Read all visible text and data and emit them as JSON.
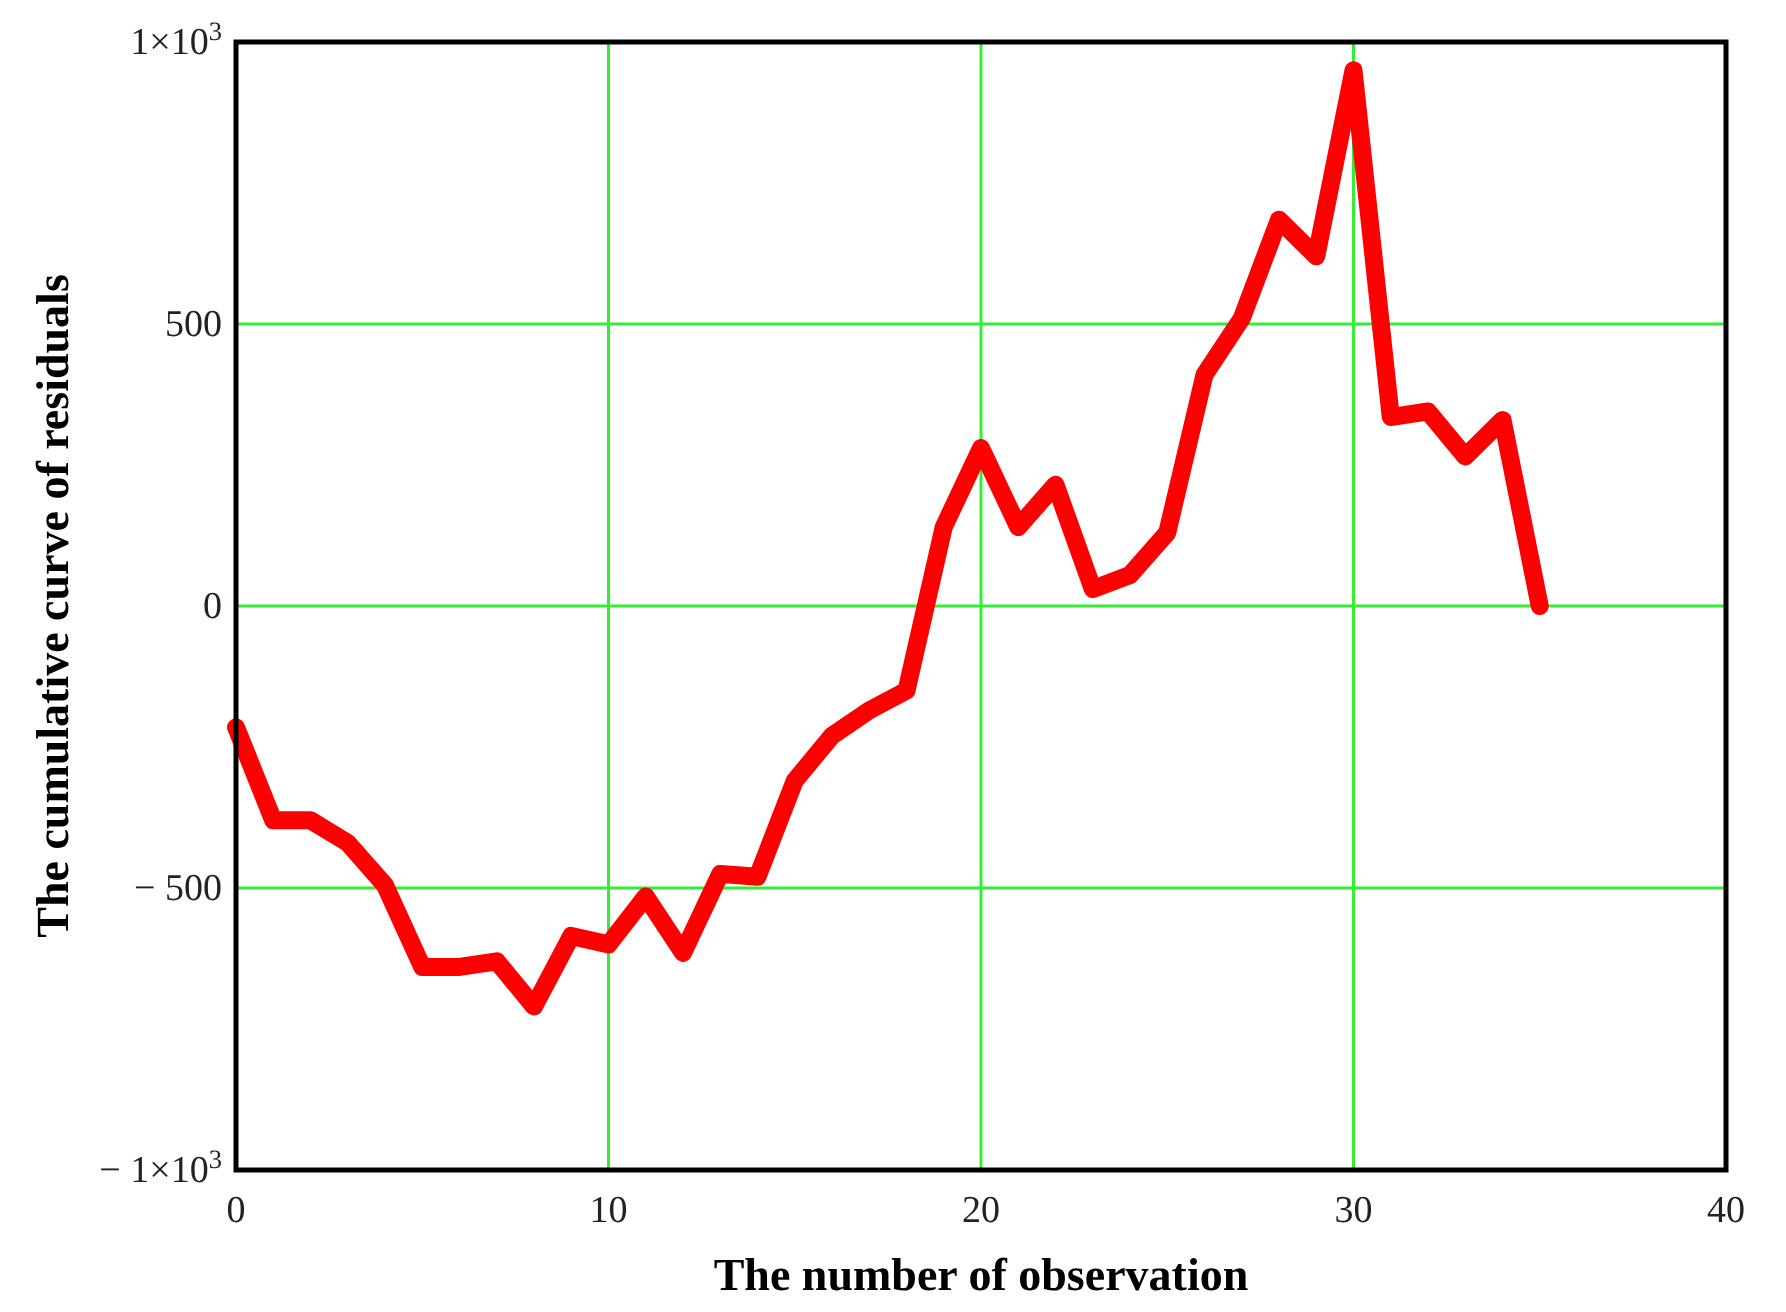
{
  "chart_data": {
    "type": "line",
    "xlabel": "The number of observation",
    "ylabel": "The cumulative curve of residuals",
    "x": [
      0,
      1,
      2,
      3,
      4,
      5,
      6,
      7,
      8,
      9,
      10,
      11,
      12,
      13,
      14,
      15,
      16,
      17,
      18,
      19,
      20,
      21,
      22,
      23,
      24,
      25,
      26,
      27,
      28,
      29,
      30,
      31,
      32,
      33,
      34,
      35
    ],
    "series": [
      {
        "color": "#ff0000",
        "values": [
          -215,
          -380,
          -380,
          -420,
          -495,
          -640,
          -640,
          -630,
          -710,
          -585,
          -600,
          -515,
          -615,
          -475,
          -480,
          -310,
          -230,
          -185,
          -150,
          140,
          280,
          140,
          215,
          30,
          55,
          130,
          410,
          510,
          685,
          620,
          950,
          335,
          345,
          265,
          330,
          0
        ]
      }
    ],
    "xlim": [
      0,
      40
    ],
    "xticks": [
      0,
      10,
      20,
      30,
      40
    ],
    "ylim": [
      -1000,
      1000
    ],
    "yticks": [
      {
        "value": -1000,
        "label": "− 1×10$^{3}$"
      },
      {
        "value": -500,
        "label": "− 500"
      },
      0,
      500,
      {
        "value": 1000,
        "label": "1×10$^{3}$"
      }
    ],
    "grid": true,
    "line_style": "solid"
  }
}
